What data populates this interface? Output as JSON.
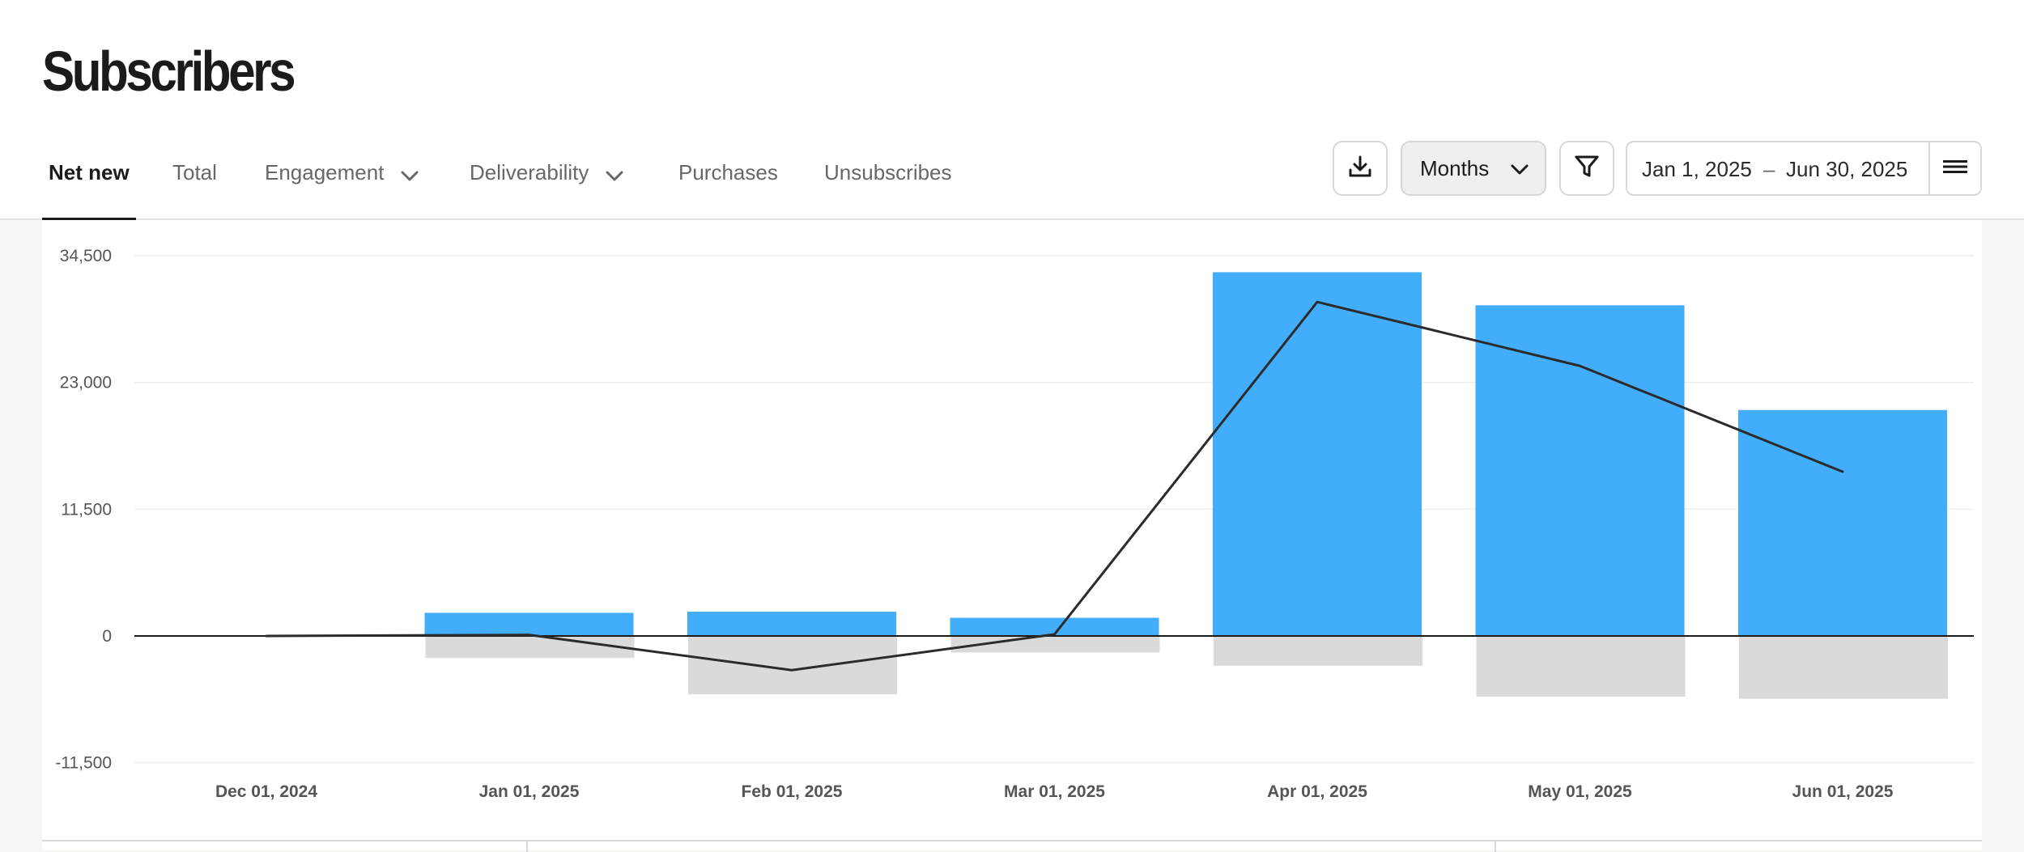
{
  "page": {
    "title": "Subscribers"
  },
  "tabs": [
    {
      "label": "Net new",
      "active": true,
      "dropdown": false
    },
    {
      "label": "Total",
      "active": false,
      "dropdown": false
    },
    {
      "label": "Engagement",
      "active": false,
      "dropdown": true
    },
    {
      "label": "Deliverability",
      "active": false,
      "dropdown": true
    },
    {
      "label": "Purchases",
      "active": false,
      "dropdown": false
    },
    {
      "label": "Unsubscribes",
      "active": false,
      "dropdown": false
    }
  ],
  "toolbar": {
    "download_icon": "download-icon",
    "interval_value": "Months",
    "filter_icon": "filter-icon",
    "date_start": "Jan 1, 2025",
    "date_separator": "–",
    "date_end": "Jun 30, 2025",
    "menu_icon": "menu-icon"
  },
  "colors": {
    "bar_positive": "#42aefb",
    "bar_negative": "#dadada",
    "line": "#2b2b2b",
    "active_tab": "#1b1b1b"
  },
  "chart_data": {
    "type": "bar",
    "categories": [
      "Dec 01, 2024",
      "Jan 01, 2025",
      "Feb 01, 2025",
      "Mar 01, 2025",
      "Apr 01, 2025",
      "May 01, 2025",
      "Jun 01, 2025"
    ],
    "series": [
      {
        "kind": "bar",
        "values": [
          0,
          2100,
          2200,
          1650,
          33000,
          30000,
          20500
        ]
      },
      {
        "kind": "bar",
        "values": [
          0,
          -2000,
          -5300,
          -1500,
          -2700,
          -5500,
          -5700
        ]
      },
      {
        "kind": "line",
        "values": [
          0,
          100,
          -3100,
          150,
          30300,
          24500,
          14900
        ]
      }
    ],
    "yticks": [
      34500,
      23000,
      11500,
      0,
      -11500
    ],
    "ytick_labels": [
      "34,500",
      "23,000",
      "11,500",
      "0",
      "-11,500"
    ],
    "ylim": [
      -11500,
      34500
    ],
    "grid": true
  }
}
